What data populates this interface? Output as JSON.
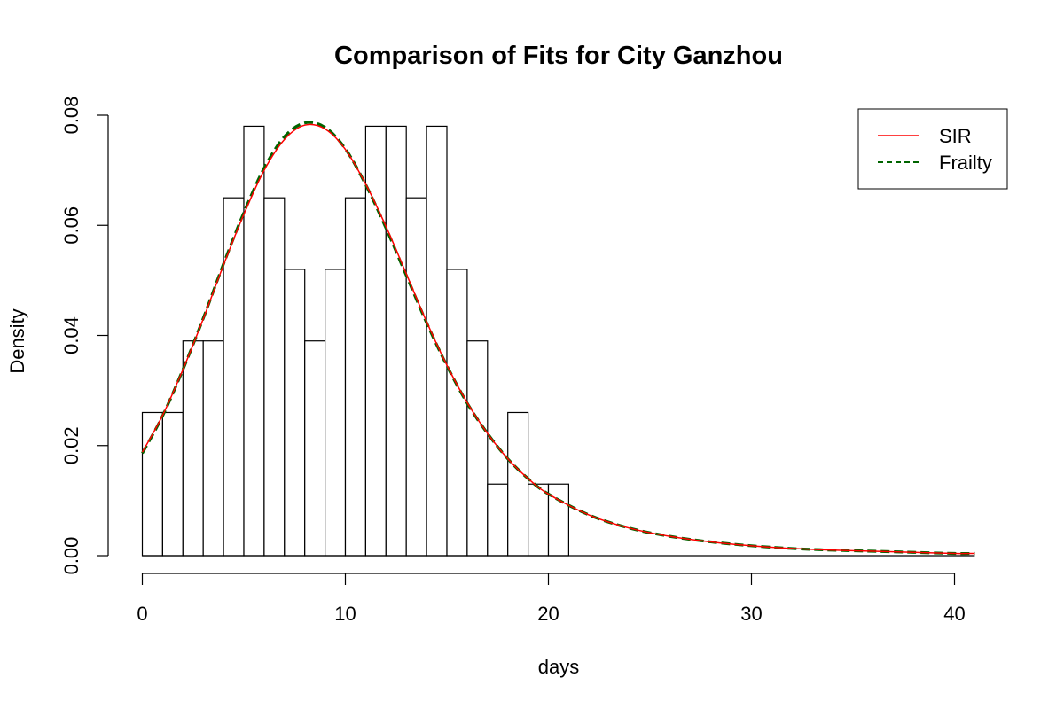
{
  "chart_data": {
    "type": "bar",
    "title": "Comparison of Fits for City Ganzhou",
    "xlabel": "days",
    "ylabel": "Density",
    "xlim": [
      0,
      41
    ],
    "ylim": [
      0,
      0.08
    ],
    "x_ticks": [
      0,
      10,
      20,
      30,
      40
    ],
    "y_ticks": [
      0.0,
      0.02,
      0.04,
      0.06,
      0.08
    ],
    "x_tick_labels": [
      "0",
      "10",
      "20",
      "30",
      "40"
    ],
    "y_tick_labels": [
      "0.00",
      "0.02",
      "0.04",
      "0.06",
      "0.08"
    ],
    "grid": false,
    "legend_position": "top-right",
    "histogram": {
      "bin_edges": [
        0,
        1,
        2,
        3,
        4,
        5,
        6,
        7,
        8,
        9,
        10,
        11,
        12,
        13,
        14,
        15,
        16,
        17,
        18,
        19,
        20,
        21
      ],
      "density": [
        0.026,
        0.026,
        0.039,
        0.039,
        0.065,
        0.078,
        0.065,
        0.052,
        0.039,
        0.052,
        0.065,
        0.078,
        0.078,
        0.065,
        0.078,
        0.052,
        0.039,
        0.013,
        0.026,
        0.013,
        0.013
      ]
    },
    "series": [
      {
        "name": "SIR",
        "type": "line",
        "color": "#ff0000",
        "style": "solid",
        "x": [
          0,
          1,
          2,
          3,
          4,
          5,
          6,
          7,
          8,
          9,
          10,
          11,
          12,
          13,
          14,
          15,
          16,
          17,
          18,
          19,
          20,
          22,
          24,
          26,
          28,
          30,
          32,
          34,
          36,
          38,
          40,
          41
        ],
        "y": [
          0.0188,
          0.0255,
          0.0338,
          0.043,
          0.0528,
          0.062,
          0.07,
          0.0756,
          0.0782,
          0.0775,
          0.0738,
          0.0675,
          0.0598,
          0.0512,
          0.0425,
          0.0346,
          0.0278,
          0.0222,
          0.0176,
          0.014,
          0.0112,
          0.0074,
          0.005,
          0.0035,
          0.0025,
          0.0018,
          0.0013,
          0.001,
          0.0008,
          0.0006,
          0.0004,
          0.0004
        ]
      },
      {
        "name": "Frailty",
        "type": "line",
        "color": "#006400",
        "style": "dashed",
        "x": [
          0,
          1,
          2,
          3,
          4,
          5,
          6,
          7,
          8,
          9,
          10,
          11,
          12,
          13,
          14,
          15,
          16,
          17,
          18,
          19,
          20,
          22,
          24,
          26,
          28,
          30,
          32,
          34,
          36,
          38,
          40,
          41
        ],
        "y": [
          0.0186,
          0.0254,
          0.0338,
          0.0431,
          0.053,
          0.0623,
          0.0704,
          0.0761,
          0.0786,
          0.0778,
          0.0739,
          0.0674,
          0.0595,
          0.0509,
          0.0423,
          0.0345,
          0.0277,
          0.0222,
          0.0176,
          0.014,
          0.0112,
          0.0074,
          0.005,
          0.0035,
          0.0025,
          0.0018,
          0.0013,
          0.001,
          0.0008,
          0.0006,
          0.0004,
          0.0004
        ]
      }
    ]
  }
}
